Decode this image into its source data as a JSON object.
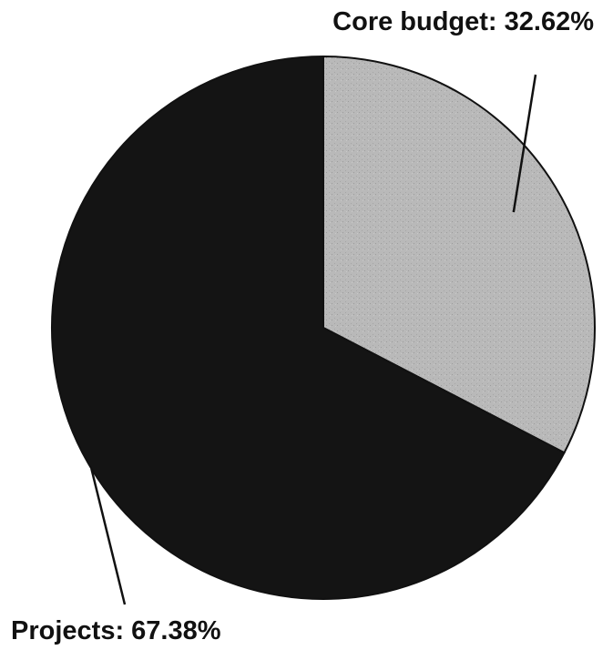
{
  "chart_data": {
    "type": "pie",
    "slices": [
      {
        "label": "Core budget: 32.62%",
        "category": "Core budget",
        "value": 32.62,
        "color": "#b9b9b9"
      },
      {
        "label": "Projects: 67.38%",
        "category": "Projects",
        "value": 67.38,
        "color": "#141414"
      }
    ],
    "start_angle_deg": 0,
    "direction": "clockwise",
    "legend": "none",
    "labels": "outside with leader lines"
  }
}
